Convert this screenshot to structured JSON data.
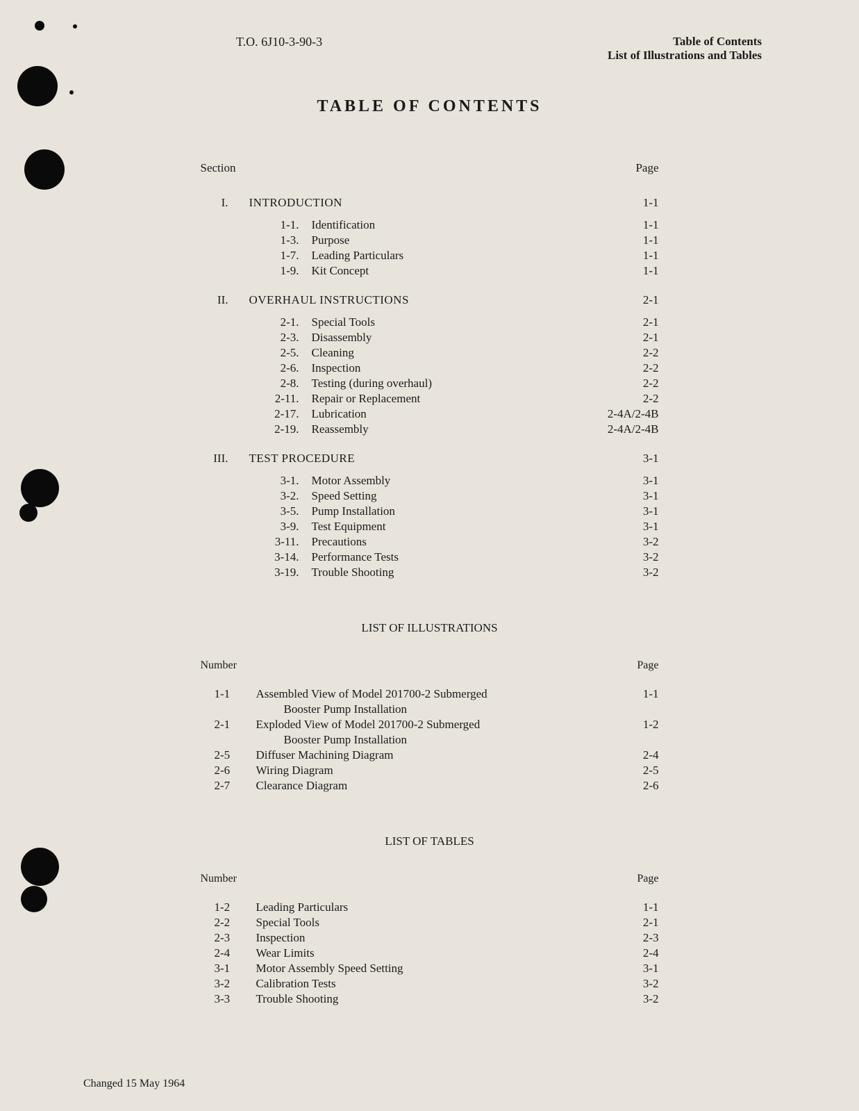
{
  "header": {
    "leftText": "T.O. 6J10-3-90-3",
    "rightLine1": "Table of Contents",
    "rightLine2": "List of Illustrations and Tables"
  },
  "pageTitle": "TABLE OF CONTENTS",
  "tocHeaders": {
    "section": "Section",
    "page": "Page"
  },
  "sections": [
    {
      "number": "I.",
      "title": "INTRODUCTION",
      "page": "1-1",
      "subsections": [
        {
          "num": "1-1.",
          "title": "Identification",
          "page": "1-1"
        },
        {
          "num": "1-3.",
          "title": "Purpose",
          "page": "1-1"
        },
        {
          "num": "1-7.",
          "title": "Leading Particulars",
          "page": "1-1"
        },
        {
          "num": "1-9.",
          "title": "Kit Concept",
          "page": "1-1"
        }
      ]
    },
    {
      "number": "II.",
      "title": "OVERHAUL INSTRUCTIONS",
      "page": "2-1",
      "subsections": [
        {
          "num": "2-1.",
          "title": "Special Tools",
          "page": "2-1"
        },
        {
          "num": "2-3.",
          "title": "Disassembly",
          "page": "2-1"
        },
        {
          "num": "2-5.",
          "title": "Cleaning",
          "page": "2-2"
        },
        {
          "num": "2-6.",
          "title": "Inspection",
          "page": "2-2"
        },
        {
          "num": "2-8.",
          "title": "Testing (during overhaul)",
          "page": "2-2"
        },
        {
          "num": "2-11.",
          "title": "Repair or Replacement",
          "page": "2-2"
        },
        {
          "num": "2-17.",
          "title": "Lubrication",
          "page": "2-4A/2-4B"
        },
        {
          "num": "2-19.",
          "title": "Reassembly",
          "page": "2-4A/2-4B"
        }
      ]
    },
    {
      "number": "III.",
      "title": "TEST PROCEDURE",
      "page": "3-1",
      "subsections": [
        {
          "num": "3-1.",
          "title": "Motor Assembly",
          "page": "3-1"
        },
        {
          "num": "3-2.",
          "title": "Speed Setting",
          "page": "3-1"
        },
        {
          "num": "3-5.",
          "title": "Pump Installation",
          "page": "3-1"
        },
        {
          "num": "3-9.",
          "title": "Test Equipment",
          "page": "3-1"
        },
        {
          "num": "3-11.",
          "title": "Precautions",
          "page": "3-2"
        },
        {
          "num": "3-14.",
          "title": "Performance Tests",
          "page": "3-2"
        },
        {
          "num": "3-19.",
          "title": "Trouble Shooting",
          "page": "3-2"
        }
      ]
    }
  ],
  "illustrationsTitle": "LIST OF ILLUSTRATIONS",
  "listHeaders": {
    "number": "Number",
    "page": "Page"
  },
  "illustrations": [
    {
      "num": "1-1",
      "desc1": "Assembled View of Model 201700-2 Submerged",
      "desc2": "Booster Pump Installation",
      "page": "1-1"
    },
    {
      "num": "2-1",
      "desc1": "Exploded View of Model 201700-2 Submerged",
      "desc2": "Booster Pump Installation",
      "page": "1-2"
    },
    {
      "num": "2-5",
      "desc1": "Diffuser Machining Diagram",
      "page": "2-4"
    },
    {
      "num": "2-6",
      "desc1": "Wiring Diagram",
      "page": "2-5"
    },
    {
      "num": "2-7",
      "desc1": "Clearance Diagram",
      "page": "2-6"
    }
  ],
  "tablesTitle": "LIST OF TABLES",
  "tables": [
    {
      "num": "1-2",
      "desc": "Leading Particulars",
      "page": "1-1"
    },
    {
      "num": "2-2",
      "desc": "Special Tools",
      "page": "2-1"
    },
    {
      "num": "2-3",
      "desc": "Inspection",
      "page": "2-3"
    },
    {
      "num": "2-4",
      "desc": "Wear Limits",
      "page": "2-4"
    },
    {
      "num": "3-1",
      "desc": "Motor Assembly Speed Setting",
      "page": "3-1"
    },
    {
      "num": "3-2",
      "desc": "Calibration Tests",
      "page": "3-2"
    },
    {
      "num": "3-3",
      "desc": "Trouble Shooting",
      "page": "3-2"
    }
  ],
  "footer": "Changed 15 May 1964"
}
